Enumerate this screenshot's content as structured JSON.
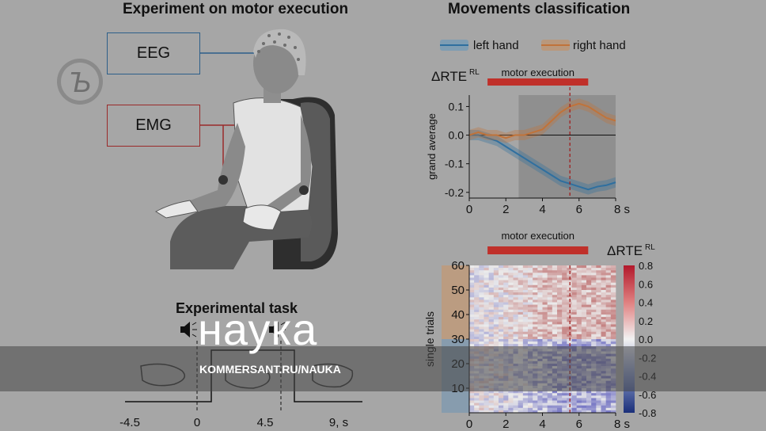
{
  "left": {
    "title": "Experiment on motor execution",
    "eeg_label": "EEG",
    "emg_label": "EMG",
    "task_title": "Experimental task",
    "task_ticks": [
      "-4.5",
      "0",
      "4.5",
      "9, s"
    ]
  },
  "right": {
    "title": "Movements classification",
    "legend": [
      {
        "label": "left hand",
        "color": "#2f6f9f"
      },
      {
        "label": "right hand",
        "color": "#c0733a"
      }
    ],
    "top_y_label": "ΔRTE",
    "top_y_label_sup": "RL",
    "motor_label": "motor execution",
    "heat_colorbar_label": "ΔRTE",
    "heat_colorbar_sup": "RL",
    "heat_ylabel": "single trials",
    "grand_label": "grand average",
    "s_unit": "s"
  },
  "watermark": {
    "word": "наука",
    "url": "KOMMERSANT.RU/NAUKA"
  },
  "chart_data": [
    {
      "type": "line",
      "ylabel": "grand average",
      "x_ticks": [
        "0",
        "2",
        "4",
        "6",
        "8 s"
      ],
      "y_ticks": [
        "0.1",
        "0.0",
        "-0.1",
        "-0.2"
      ],
      "xlim": [
        0,
        8
      ],
      "ylim": [
        -0.22,
        0.14
      ],
      "shaded_interval": [
        2.7,
        8
      ],
      "marker_line_x": 5.5,
      "motor_execution_interval": [
        1,
        6.5
      ],
      "series": [
        {
          "name": "left hand",
          "color": "#2f6f9f",
          "x": [
            0,
            0.5,
            1,
            1.5,
            2,
            2.5,
            3,
            3.5,
            4,
            4.5,
            5,
            5.5,
            6,
            6.5,
            7,
            7.5,
            8
          ],
          "values": [
            0.0,
            0.0,
            -0.01,
            -0.02,
            -0.04,
            -0.06,
            -0.08,
            -0.1,
            -0.12,
            -0.14,
            -0.16,
            -0.17,
            -0.18,
            -0.19,
            -0.18,
            -0.175,
            -0.165
          ]
        },
        {
          "name": "right hand",
          "color": "#c0733a",
          "x": [
            0,
            0.5,
            1,
            1.5,
            2,
            2.5,
            3,
            3.5,
            4,
            4.5,
            5,
            5.5,
            6,
            6.5,
            7,
            7.5,
            8
          ],
          "values": [
            0.0,
            0.01,
            0.0,
            0.0,
            -0.01,
            0.0,
            0.0,
            0.01,
            0.02,
            0.05,
            0.08,
            0.1,
            0.11,
            0.1,
            0.08,
            0.06,
            0.05
          ]
        }
      ]
    },
    {
      "type": "heatmap",
      "ylabel": "single trials",
      "x_ticks": [
        "0",
        "2",
        "4",
        "6",
        "8 s"
      ],
      "y_ticks": [
        "60",
        "50",
        "40",
        "30",
        "20",
        "10"
      ],
      "colorbar_ticks": [
        "0.8",
        "0.6",
        "0.4",
        "0.2",
        "0.0",
        "-0.2",
        "-0.4",
        "-0.6",
        "-0.8"
      ],
      "xlim": [
        0,
        8
      ],
      "ylim": [
        0,
        60
      ],
      "clim": [
        -0.8,
        0.8
      ],
      "right_hand_trials": [
        31,
        60
      ],
      "left_hand_trials": [
        1,
        30
      ],
      "marker_line_x": 5.5,
      "motor_execution_interval": [
        1,
        6.5
      ]
    }
  ]
}
